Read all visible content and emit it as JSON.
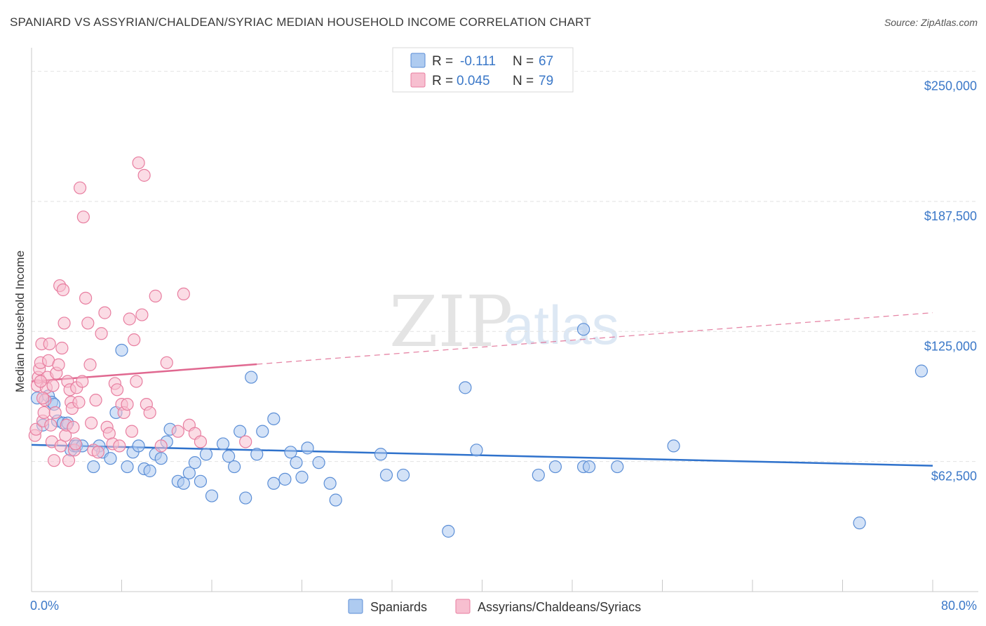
{
  "title": "SPANIARD VS ASSYRIAN/CHALDEAN/SYRIAC MEDIAN HOUSEHOLD INCOME CORRELATION CHART",
  "source": "Source: ZipAtlas.com",
  "watermark": {
    "zip": "ZIP",
    "atlas": "atlas"
  },
  "colors": {
    "blue_fill": "#aecbf0",
    "blue_stroke": "#5b8ed6",
    "blue_line": "#2f72cc",
    "pink_fill": "#f7bfd0",
    "pink_stroke": "#e87ea0",
    "pink_line": "#e06890",
    "grid": "#e2e2e2",
    "axis_text": "#3b78c8"
  },
  "legend_box": {
    "rows": [
      {
        "r_label": "R =",
        "r_value": "-0.111",
        "n_label": "N =",
        "n_value": "67",
        "series": "Spaniards"
      },
      {
        "r_label": "R =",
        "r_value": "0.045",
        "n_label": "N =",
        "n_value": "79",
        "series": "Assyrians/Chaldeans/Syriacs"
      }
    ]
  },
  "chart_data": {
    "type": "scatter",
    "title": "SPANIARD VS ASSYRIAN/CHALDEAN/SYRIAC MEDIAN HOUSEHOLD INCOME CORRELATION CHART",
    "xlabel": "",
    "ylabel": "Median Household Income",
    "xlim": [
      0,
      80
    ],
    "ylim": [
      0,
      262000
    ],
    "x_tick_labels": [
      "0.0%",
      "80.0%"
    ],
    "y_ticks": [
      62500,
      125000,
      187500,
      250000
    ],
    "y_tick_labels": [
      "$62,500",
      "$125,000",
      "$187,500",
      "$250,000"
    ],
    "legend": [
      "Spaniards",
      "Assyrians/Chaldeans/Syriacs"
    ],
    "series": [
      {
        "name": "Spaniards",
        "color": "blue",
        "trend": {
          "x": [
            0,
            80
          ],
          "y": [
            70500,
            60500
          ],
          "solid_to": 80
        },
        "points": [
          [
            0.5,
            93000
          ],
          [
            1.0,
            80000
          ],
          [
            1.5,
            94000
          ],
          [
            1.8,
            91000
          ],
          [
            2.0,
            90000
          ],
          [
            2.3,
            82000
          ],
          [
            2.8,
            81000
          ],
          [
            3.2,
            81000
          ],
          [
            3.5,
            68000
          ],
          [
            3.8,
            70000
          ],
          [
            4.0,
            70000
          ],
          [
            4.5,
            70000
          ],
          [
            5.5,
            60000
          ],
          [
            6.0,
            70000
          ],
          [
            6.3,
            67000
          ],
          [
            7.0,
            64000
          ],
          [
            7.5,
            86000
          ],
          [
            8.0,
            116000
          ],
          [
            8.5,
            60000
          ],
          [
            9.0,
            67000
          ],
          [
            9.5,
            70000
          ],
          [
            10.0,
            59000
          ],
          [
            10.5,
            58000
          ],
          [
            11.0,
            66000
          ],
          [
            11.5,
            64000
          ],
          [
            12.0,
            72000
          ],
          [
            12.3,
            78000
          ],
          [
            13.0,
            53000
          ],
          [
            13.5,
            52000
          ],
          [
            14.0,
            57000
          ],
          [
            14.5,
            62000
          ],
          [
            15.0,
            53000
          ],
          [
            15.5,
            66000
          ],
          [
            16.0,
            46000
          ],
          [
            17.0,
            71000
          ],
          [
            17.5,
            65000
          ],
          [
            18.0,
            60000
          ],
          [
            18.5,
            77000
          ],
          [
            19.0,
            45000
          ],
          [
            19.5,
            103000
          ],
          [
            20.0,
            66000
          ],
          [
            20.5,
            77000
          ],
          [
            21.5,
            83000
          ],
          [
            21.5,
            52000
          ],
          [
            22.5,
            54000
          ],
          [
            23.0,
            67000
          ],
          [
            23.5,
            62000
          ],
          [
            24.0,
            55000
          ],
          [
            24.5,
            69000
          ],
          [
            25.5,
            62000
          ],
          [
            26.5,
            52000
          ],
          [
            27.0,
            44000
          ],
          [
            31.0,
            66000
          ],
          [
            31.5,
            56000
          ],
          [
            33.0,
            56000
          ],
          [
            37.0,
            29000
          ],
          [
            38.5,
            98000
          ],
          [
            39.5,
            68000
          ],
          [
            45.0,
            56000
          ],
          [
            46.5,
            60000
          ],
          [
            49.0,
            60000
          ],
          [
            49.5,
            60000
          ],
          [
            49.0,
            126000
          ],
          [
            52.0,
            60000
          ],
          [
            57.0,
            70000
          ],
          [
            73.5,
            33000
          ],
          [
            79.0,
            106000
          ]
        ]
      },
      {
        "name": "Assyrians/Chaldeans/Syriacs",
        "color": "pink",
        "trend": {
          "x": [
            0,
            80
          ],
          "y": [
            101000,
            134000
          ],
          "solid_to": 20
        },
        "points": [
          [
            0.3,
            75000
          ],
          [
            0.4,
            78000
          ],
          [
            0.5,
            99000
          ],
          [
            0.6,
            103000
          ],
          [
            0.7,
            107000
          ],
          [
            0.8,
            110000
          ],
          [
            0.9,
            119000
          ],
          [
            1.0,
            82000
          ],
          [
            1.1,
            86000
          ],
          [
            1.2,
            92000
          ],
          [
            1.3,
            98000
          ],
          [
            1.4,
            103000
          ],
          [
            1.5,
            111000
          ],
          [
            1.6,
            119000
          ],
          [
            1.7,
            80000
          ],
          [
            1.8,
            72000
          ],
          [
            1.9,
            99000
          ],
          [
            2.0,
            63000
          ],
          [
            2.1,
            86000
          ],
          [
            2.2,
            105000
          ],
          [
            2.4,
            109000
          ],
          [
            2.5,
            147000
          ],
          [
            2.6,
            70000
          ],
          [
            2.7,
            117000
          ],
          [
            2.8,
            145000
          ],
          [
            2.9,
            129000
          ],
          [
            3.0,
            75000
          ],
          [
            3.1,
            80000
          ],
          [
            3.2,
            101000
          ],
          [
            3.3,
            63000
          ],
          [
            3.4,
            97000
          ],
          [
            3.5,
            91000
          ],
          [
            3.6,
            88000
          ],
          [
            3.7,
            79000
          ],
          [
            3.8,
            68000
          ],
          [
            3.9,
            71000
          ],
          [
            4.0,
            98000
          ],
          [
            4.2,
            91000
          ],
          [
            4.3,
            194000
          ],
          [
            4.5,
            101000
          ],
          [
            4.6,
            180000
          ],
          [
            4.8,
            141000
          ],
          [
            5.0,
            129000
          ],
          [
            5.2,
            109000
          ],
          [
            5.3,
            81000
          ],
          [
            5.5,
            68000
          ],
          [
            5.7,
            92000
          ],
          [
            5.9,
            67000
          ],
          [
            6.2,
            124000
          ],
          [
            6.5,
            134000
          ],
          [
            6.7,
            79000
          ],
          [
            6.9,
            76000
          ],
          [
            7.2,
            71000
          ],
          [
            7.4,
            100000
          ],
          [
            7.6,
            97000
          ],
          [
            7.8,
            70000
          ],
          [
            8.0,
            90000
          ],
          [
            8.2,
            86000
          ],
          [
            8.5,
            90000
          ],
          [
            8.7,
            131000
          ],
          [
            8.9,
            77000
          ],
          [
            9.1,
            121000
          ],
          [
            9.3,
            101000
          ],
          [
            9.5,
            206000
          ],
          [
            9.8,
            133000
          ],
          [
            10.0,
            200000
          ],
          [
            10.2,
            90000
          ],
          [
            10.5,
            86000
          ],
          [
            11.0,
            142000
          ],
          [
            11.5,
            70000
          ],
          [
            12.0,
            110000
          ],
          [
            13.0,
            77000
          ],
          [
            13.5,
            143000
          ],
          [
            14.0,
            80000
          ],
          [
            14.5,
            76000
          ],
          [
            15.0,
            72000
          ],
          [
            19.0,
            72000
          ],
          [
            0.8,
            101000
          ],
          [
            1.0,
            93000
          ]
        ]
      }
    ]
  }
}
